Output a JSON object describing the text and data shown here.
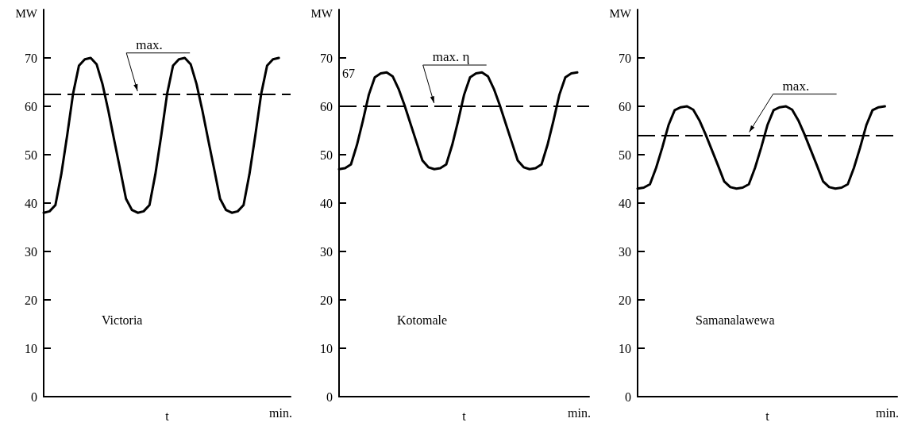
{
  "chart_data": [
    {
      "type": "line",
      "title": "Victoria",
      "xlabel": "t",
      "ylabel": "MW",
      "annotations": [
        "min."
      ],
      "tick_labels": "y",
      "grid": false,
      "line_style": "solid",
      "categories": [
        null,
        null,
        null,
        null,
        null,
        null,
        null,
        null,
        null,
        null,
        null,
        null,
        null,
        null,
        null,
        null,
        null,
        null,
        null,
        null,
        null,
        null,
        null,
        null,
        null,
        null,
        null,
        null,
        null,
        null,
        null,
        null,
        null,
        null,
        null,
        null,
        null,
        null,
        null,
        null,
        null,
        null,
        null
      ],
      "series": [
        {
          "color": "#000000",
          "values": [
            38,
            38.3,
            39.6,
            46,
            54,
            62.6,
            68.4,
            69.7,
            70,
            68.7,
            64.6,
            59.1,
            53,
            47,
            40.9,
            38.6,
            38,
            38.3,
            39.6,
            46,
            54,
            62.6,
            68.4,
            69.7,
            70,
            68.7,
            64.6,
            59.1,
            53,
            47,
            40.9,
            38.6,
            38,
            38.3,
            39.6,
            46,
            54,
            62.6,
            68.4,
            69.7,
            70,
            null,
            null
          ]
        }
      ],
      "ylim": [
        0,
        80
      ],
      "yticks": [
        0,
        10,
        20,
        30,
        40,
        50,
        60,
        70
      ],
      "ref_lines": [
        {
          "axis": "y",
          "value": 62.5,
          "label": "max.",
          "color": "#000000",
          "line_style": "dashed"
        }
      ]
    },
    {
      "type": "line",
      "title": "Kotomale",
      "xlabel": "t",
      "ylabel": "MW",
      "annotations": [
        "min.",
        "67"
      ],
      "tick_labels": "y",
      "grid": false,
      "line_style": "solid",
      "categories": [
        null,
        null,
        null,
        null,
        null,
        null,
        null,
        null,
        null,
        null,
        null,
        null,
        null,
        null,
        null,
        null,
        null,
        null,
        null,
        null,
        null,
        null,
        null,
        null,
        null,
        null,
        null,
        null,
        null,
        null,
        null,
        null,
        null,
        null,
        null,
        null,
        null,
        null,
        null,
        null,
        null,
        null,
        null
      ],
      "series": [
        {
          "color": "#000000",
          "values": [
            47,
            47.2,
            48,
            52,
            57,
            62.4,
            66,
            66.8,
            67,
            66.2,
            63.6,
            60.2,
            56.4,
            52.6,
            48.8,
            47.4,
            47,
            47.2,
            48,
            52,
            57,
            62.4,
            66,
            66.8,
            67,
            66.2,
            63.6,
            60.2,
            56.4,
            52.6,
            48.8,
            47.4,
            47,
            47.2,
            48,
            52,
            57,
            62.4,
            66,
            66.8,
            67,
            null,
            null
          ]
        }
      ],
      "ylim": [
        0,
        80
      ],
      "yticks": [
        0,
        10,
        20,
        30,
        40,
        50,
        60,
        70
      ],
      "ref_lines": [
        {
          "axis": "y",
          "value": 60,
          "label": "max. η",
          "color": "#000000",
          "line_style": "dashed"
        }
      ]
    },
    {
      "type": "line",
      "title": "Samanalawewa",
      "xlabel": "t",
      "ylabel": "MW",
      "annotations": [
        "min."
      ],
      "tick_labels": "y",
      "grid": false,
      "line_style": "solid",
      "categories": [
        null,
        null,
        null,
        null,
        null,
        null,
        null,
        null,
        null,
        null,
        null,
        null,
        null,
        null,
        null,
        null,
        null,
        null,
        null,
        null,
        null,
        null,
        null,
        null,
        null,
        null,
        null,
        null,
        null,
        null,
        null,
        null,
        null,
        null,
        null,
        null,
        null,
        null,
        null,
        null,
        null,
        null,
        null
      ],
      "series": [
        {
          "color": "#000000",
          "values": [
            43,
            43.2,
            43.9,
            47.3,
            51.5,
            56.1,
            59.2,
            59.8,
            60,
            59.3,
            57.1,
            54.2,
            51,
            47.8,
            44.5,
            43.3,
            43,
            43.2,
            43.9,
            47.3,
            51.5,
            56.1,
            59.2,
            59.8,
            60,
            59.3,
            57.1,
            54.2,
            51,
            47.8,
            44.5,
            43.3,
            43,
            43.2,
            43.9,
            47.3,
            51.5,
            56.1,
            59.2,
            59.8,
            60,
            null,
            null
          ]
        }
      ],
      "ylim": [
        0,
        80
      ],
      "yticks": [
        0,
        10,
        20,
        30,
        40,
        50,
        60,
        70
      ],
      "ref_lines": [
        {
          "axis": "y",
          "value": 54,
          "label": "max.",
          "color": "#000000",
          "line_style": "dashed"
        }
      ]
    }
  ]
}
